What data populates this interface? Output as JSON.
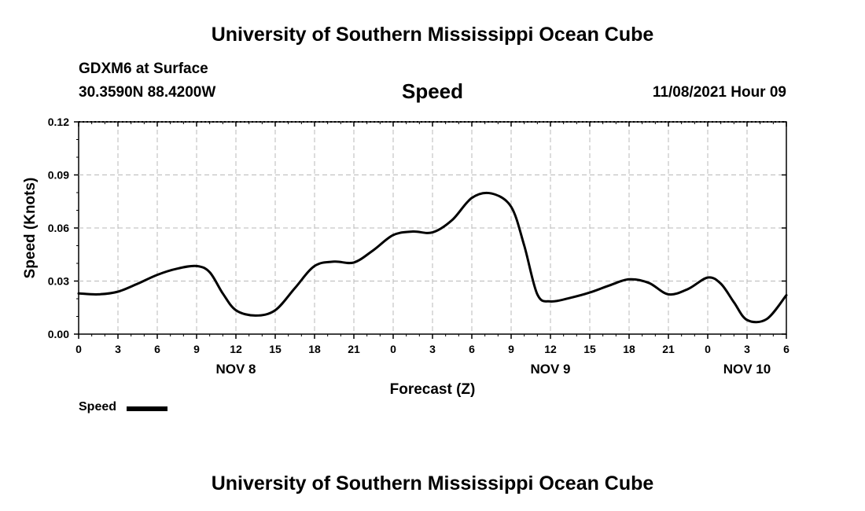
{
  "header": {
    "title_top": "University of Southern Mississippi Ocean Cube",
    "station": "GDXM6 at Surface",
    "coords": "30.3590N  88.4200W",
    "chart_title": "Speed",
    "datetime": "11/08/2021 Hour 09",
    "title_bottom": "University of Southern Mississippi Ocean Cube"
  },
  "legend": {
    "label": "Speed"
  },
  "chart_data": {
    "type": "line",
    "title": "Speed",
    "xlabel": "Forecast (Z)",
    "ylabel": "Speed (Knots)",
    "xlim": [
      0,
      54
    ],
    "ylim": [
      0,
      0.12
    ],
    "grid": true,
    "yticks": [
      0,
      0.03,
      0.06,
      0.09,
      0.12
    ],
    "ytick_labels": [
      "0.00",
      "0.03",
      "0.06",
      "0.09",
      "0.12"
    ],
    "xticks": [
      0,
      3,
      6,
      9,
      12,
      15,
      18,
      21,
      24,
      27,
      30,
      33,
      36,
      39,
      42,
      45,
      48,
      51,
      54
    ],
    "xtick_labels": [
      "0",
      "3",
      "6",
      "9",
      "12",
      "15",
      "18",
      "21",
      "0",
      "3",
      "6",
      "9",
      "12",
      "15",
      "18",
      "21",
      "0",
      "3",
      "6"
    ],
    "date_labels": [
      {
        "x": 12,
        "label": "NOV 8"
      },
      {
        "x": 36,
        "label": "NOV 9"
      },
      {
        "x": 51,
        "label": "NOV 10"
      }
    ],
    "series": [
      {
        "name": "Speed",
        "color": "#000000",
        "x": [
          0,
          1.5,
          3,
          4.5,
          6,
          7.5,
          9,
          10,
          11,
          12,
          13.5,
          15,
          16.5,
          18,
          19.5,
          21,
          22.5,
          24,
          25.5,
          27,
          28.5,
          30,
          31.5,
          33,
          34,
          35,
          36,
          37.5,
          39,
          40.5,
          42,
          43.5,
          45,
          46.5,
          48,
          49,
          50,
          51,
          52.5,
          54
        ],
        "values": [
          0.023,
          0.0225,
          0.024,
          0.0285,
          0.0335,
          0.037,
          0.0385,
          0.035,
          0.023,
          0.0135,
          0.0105,
          0.0135,
          0.026,
          0.0385,
          0.041,
          0.0405,
          0.0475,
          0.056,
          0.058,
          0.0575,
          0.0645,
          0.077,
          0.0795,
          0.072,
          0.05,
          0.0225,
          0.0185,
          0.0205,
          0.0235,
          0.0275,
          0.031,
          0.029,
          0.0225,
          0.0255,
          0.032,
          0.0285,
          0.018,
          0.008,
          0.0085,
          0.022
        ]
      }
    ]
  }
}
